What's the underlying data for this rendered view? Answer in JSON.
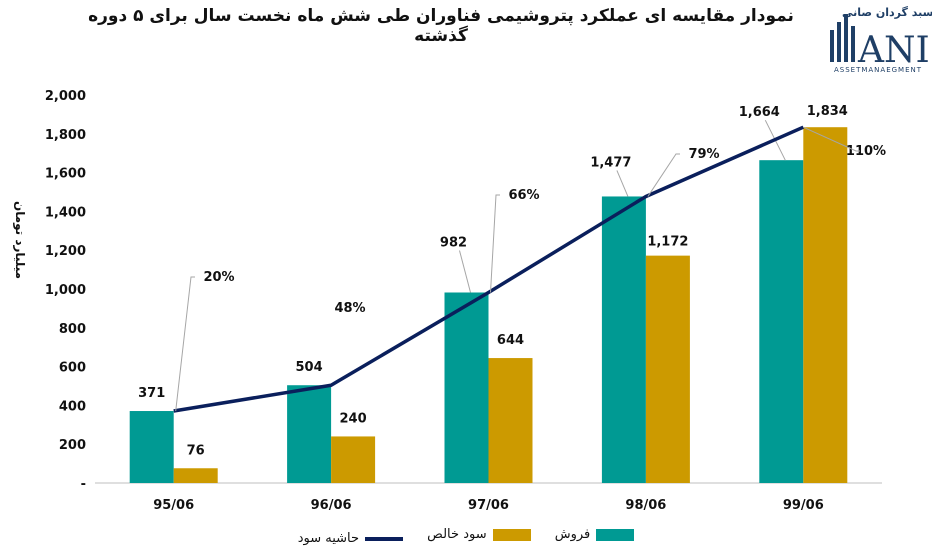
{
  "title": "نمودار مقایسه ای عملکرد پتروشیمی فناوران طی شش ماه نخست سال برای ۵ دوره گذشته",
  "logo": {
    "brand": "سبد گردان صانی",
    "mark": "ANI",
    "sub": "ASSETMANAEGMENT"
  },
  "colors": {
    "sales": "#009a93",
    "profit": "#cc9a00",
    "margin": "#0a1f5c"
  },
  "chart_data": {
    "type": "bar",
    "categories": [
      "95/06",
      "96/06",
      "97/06",
      "98/06",
      "99/06"
    ],
    "series": [
      {
        "name": "فروش",
        "values": [
          371,
          504,
          982,
          1477,
          1664
        ],
        "labels": [
          "371",
          "504",
          "982",
          "1,477",
          "1,664"
        ]
      },
      {
        "name": "سود خالص",
        "values": [
          76,
          240,
          644,
          1172,
          1834
        ],
        "labels": [
          "76",
          "240",
          "644",
          "1,172",
          "1,834"
        ]
      }
    ],
    "line": {
      "name": "حاشیه سود",
      "values": [
        20,
        48,
        66,
        79,
        110
      ],
      "labels": [
        "20%",
        "48%",
        "66%",
        "79%",
        "110%"
      ]
    },
    "ylabel": "میلیارد تومان",
    "ylim": [
      0,
      2000
    ],
    "yticks": [
      {
        "value": 0,
        "label": "-"
      },
      {
        "value": 200,
        "label": "200"
      },
      {
        "value": 400,
        "label": "400"
      },
      {
        "value": 600,
        "label": "600"
      },
      {
        "value": 800,
        "label": "800"
      },
      {
        "value": 1000,
        "label": "1,000"
      },
      {
        "value": 1200,
        "label": "1,200"
      },
      {
        "value": 1400,
        "label": "1,400"
      },
      {
        "value": 1600,
        "label": "1,600"
      },
      {
        "value": 1800,
        "label": "1,800"
      },
      {
        "value": 2000,
        "label": "2,000"
      }
    ],
    "grid": false,
    "legend": "bottom"
  }
}
